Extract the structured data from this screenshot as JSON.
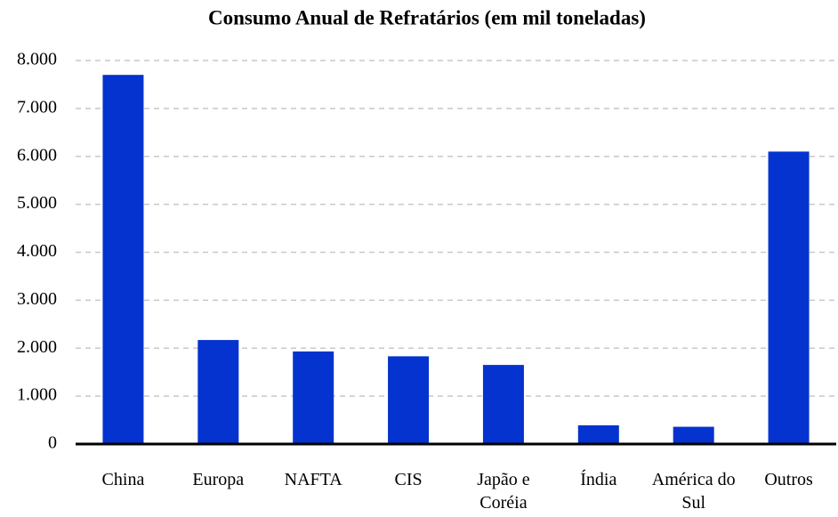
{
  "chart_data": {
    "type": "bar",
    "title": "Consumo Anual de Refratários (em mil toneladas)",
    "categories": [
      "China",
      "Europa",
      "NAFTA",
      "CIS",
      "Japão e Coréia",
      "Índia",
      "América do Sul",
      "Outros"
    ],
    "values": [
      7700,
      2170,
      1930,
      1830,
      1650,
      390,
      360,
      6100
    ],
    "color": "#0433cf",
    "ylim": [
      0,
      8000
    ],
    "yticks": [
      0,
      {
        "value": 1000,
        "label": "1.000"
      },
      {
        "value": 2000,
        "label": "2.000"
      },
      {
        "value": 3000,
        "label": "3.000"
      },
      {
        "value": 4000,
        "label": "4.000"
      },
      {
        "value": 5000,
        "label": "5.000"
      },
      {
        "value": 6000,
        "label": "6.000"
      },
      {
        "value": 7000,
        "label": "7.000"
      },
      {
        "value": 8000,
        "label": "8.000"
      }
    ],
    "grid": true
  }
}
